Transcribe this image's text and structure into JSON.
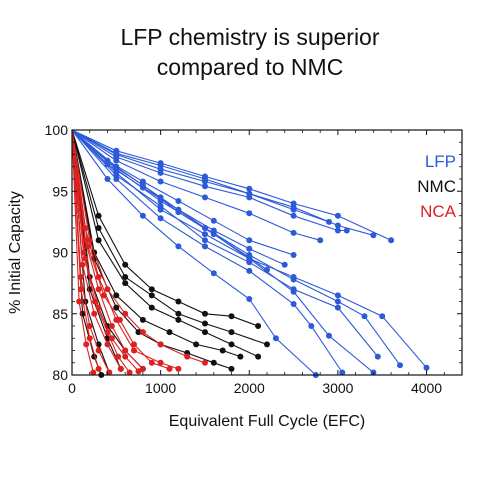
{
  "chart_data": {
    "type": "line",
    "title_lines": [
      "LFP chemistry is superior",
      "compared to NMC"
    ],
    "xlabel": "Equivalent Full Cycle (EFC)",
    "ylabel": "% Initial Capacity",
    "xlim": [
      0,
      4400
    ],
    "ylim": [
      80,
      100
    ],
    "x_ticks": [
      0,
      1000,
      2000,
      3000,
      4000
    ],
    "y_ticks": [
      80,
      85,
      90,
      95,
      100
    ],
    "grid": false,
    "legend_position": "top-right",
    "colors": {
      "LFP": "#2d5ad8",
      "NMC": "#111111",
      "NCA": "#dd2020"
    },
    "series": [
      {
        "name": "LFP",
        "color": "#2d5ad8",
        "curves": [
          [
            [
              0,
              100
            ],
            [
              500,
              98.3
            ],
            [
              1000,
              97.3
            ],
            [
              1500,
              96.2
            ],
            [
              2000,
              95.2
            ],
            [
              2500,
              94.0
            ],
            [
              3000,
              93.0
            ],
            [
              3600,
              91.0
            ]
          ],
          [
            [
              0,
              100
            ],
            [
              500,
              98.0
            ],
            [
              1000,
              96.8
            ],
            [
              1500,
              95.8
            ],
            [
              2000,
              94.8
            ],
            [
              2500,
              93.7
            ],
            [
              3000,
              92.2
            ],
            [
              3400,
              91.4
            ]
          ],
          [
            [
              0,
              100
            ],
            [
              500,
              97.8
            ],
            [
              1000,
              96.5
            ],
            [
              1500,
              95.4
            ],
            [
              2000,
              94.5
            ],
            [
              2500,
              93.0
            ],
            [
              3000,
              91.8
            ],
            [
              3100,
              91.8
            ]
          ],
          [
            [
              0,
              100
            ],
            [
              500,
              98.1
            ],
            [
              1000,
              97.1
            ],
            [
              1500,
              96.0
            ],
            [
              2000,
              94.8
            ],
            [
              2500,
              93.5
            ],
            [
              2900,
              92.5
            ]
          ],
          [
            [
              0,
              100
            ],
            [
              500,
              97.5
            ],
            [
              1000,
              95.8
            ],
            [
              1500,
              94.5
            ],
            [
              2000,
              93.2
            ],
            [
              2500,
              91.6
            ],
            [
              2800,
              91.0
            ]
          ],
          [
            [
              0,
              100
            ],
            [
              400,
              97.5
            ],
            [
              800,
              95.8
            ],
            [
              1200,
              94.2
            ],
            [
              1600,
              92.6
            ],
            [
              2000,
              91.0
            ],
            [
              2500,
              89.8
            ]
          ],
          [
            [
              0,
              100
            ],
            [
              400,
              97.2
            ],
            [
              800,
              95.3
            ],
            [
              1200,
              93.5
            ],
            [
              1600,
              91.8
            ],
            [
              2000,
              90.3
            ],
            [
              2400,
              89.0
            ]
          ],
          [
            [
              0,
              100
            ],
            [
              400,
              97.4
            ],
            [
              800,
              95.5
            ],
            [
              1200,
              93.3
            ],
            [
              1600,
              91.5
            ],
            [
              2000,
              89.6
            ],
            [
              2200,
              88.6
            ]
          ],
          [
            [
              0,
              100
            ],
            [
              500,
              96.5
            ],
            [
              1000,
              93.5
            ],
            [
              1500,
              91.5
            ],
            [
              2000,
              89.5
            ],
            [
              2500,
              88.0
            ],
            [
              3000,
              86.5
            ],
            [
              3500,
              84.8
            ],
            [
              4000,
              80.6
            ]
          ],
          [
            [
              0,
              100
            ],
            [
              500,
              96.3
            ],
            [
              1000,
              93.8
            ],
            [
              1500,
              91.0
            ],
            [
              2000,
              89.2
            ],
            [
              2500,
              87.0
            ],
            [
              3000,
              85.5
            ],
            [
              3450,
              81.5
            ]
          ],
          [
            [
              0,
              100
            ],
            [
              500,
              96.8
            ],
            [
              1000,
              94.2
            ],
            [
              1500,
              92.0
            ],
            [
              2000,
              89.8
            ],
            [
              2500,
              87.8
            ],
            [
              3000,
              86.0
            ],
            [
              3300,
              84.8
            ],
            [
              3700,
              80.8
            ]
          ],
          [
            [
              0,
              100
            ],
            [
              500,
              96.0
            ],
            [
              1000,
              92.8
            ],
            [
              1500,
              90.5
            ],
            [
              2000,
              88.5
            ],
            [
              2500,
              85.8
            ],
            [
              2700,
              84.0
            ],
            [
              3050,
              80.2
            ]
          ],
          [
            [
              0,
              100
            ],
            [
              400,
              96.0
            ],
            [
              800,
              93.0
            ],
            [
              1200,
              90.5
            ],
            [
              1600,
              88.3
            ],
            [
              2000,
              86.2
            ],
            [
              2300,
              83.0
            ],
            [
              2750,
              80.0
            ]
          ],
          [
            [
              0,
              100
            ],
            [
              500,
              97.0
            ],
            [
              1000,
              94.5
            ],
            [
              1500,
              92.0
            ],
            [
              2000,
              89.5
            ],
            [
              2500,
              86.8
            ],
            [
              2900,
              83.2
            ],
            [
              3400,
              80.2
            ]
          ]
        ]
      },
      {
        "name": "NMC",
        "color": "#111111",
        "curves": [
          [
            [
              0,
              100
            ],
            [
              300,
              93.0
            ],
            [
              600,
              89.0
            ],
            [
              900,
              87.0
            ],
            [
              1200,
              86.0
            ],
            [
              1500,
              85.0
            ],
            [
              1800,
              84.8
            ],
            [
              2100,
              84.0
            ]
          ],
          [
            [
              0,
              100
            ],
            [
              300,
              92.0
            ],
            [
              600,
              88.0
            ],
            [
              900,
              86.5
            ],
            [
              1200,
              85.0
            ],
            [
              1500,
              84.2
            ],
            [
              1800,
              83.5
            ],
            [
              2200,
              82.5
            ]
          ],
          [
            [
              0,
              100
            ],
            [
              300,
              91.0
            ],
            [
              600,
              87.5
            ],
            [
              900,
              85.5
            ],
            [
              1200,
              84.5
            ],
            [
              1500,
              83.5
            ],
            [
              1800,
              82.5
            ],
            [
              2100,
              81.5
            ]
          ],
          [
            [
              0,
              100
            ],
            [
              250,
              90.0
            ],
            [
              500,
              86.5
            ],
            [
              800,
              84.5
            ],
            [
              1100,
              83.5
            ],
            [
              1400,
              82.5
            ],
            [
              1700,
              82.0
            ],
            [
              1900,
              81.5
            ]
          ],
          [
            [
              0,
              100
            ],
            [
              250,
              89.5
            ],
            [
              500,
              85.5
            ],
            [
              750,
              83.5
            ],
            [
              1000,
              82.5
            ],
            [
              1300,
              81.8
            ],
            [
              1600,
              81.0
            ],
            [
              1800,
              80.5
            ]
          ],
          [
            [
              0,
              100
            ],
            [
              200,
              88.0
            ],
            [
              400,
              84.0
            ],
            [
              600,
              82.0
            ],
            [
              800,
              80.5
            ]
          ],
          [
            [
              0,
              100
            ],
            [
              200,
              87.0
            ],
            [
              400,
              83.0
            ],
            [
              550,
              80.5
            ]
          ],
          [
            [
              0,
              100
            ],
            [
              150,
              86.0
            ],
            [
              300,
              82.5
            ],
            [
              420,
              80.2
            ]
          ],
          [
            [
              0,
              100
            ],
            [
              120,
              85.0
            ],
            [
              250,
              81.5
            ],
            [
              330,
              80.0
            ]
          ]
        ]
      },
      {
        "name": "NCA",
        "color": "#dd2020",
        "curves": [
          [
            [
              0,
              100
            ],
            [
              150,
              92.0
            ],
            [
              300,
              88.0
            ],
            [
              500,
              84.5
            ],
            [
              700,
              82.0
            ],
            [
              1000,
              81.0
            ],
            [
              1200,
              80.5
            ]
          ],
          [
            [
              0,
              100
            ],
            [
              150,
              91.0
            ],
            [
              300,
              87.0
            ],
            [
              450,
              84.0
            ],
            [
              600,
              82.0
            ],
            [
              800,
              80.5
            ]
          ],
          [
            [
              0,
              100
            ],
            [
              120,
              89.0
            ],
            [
              250,
              85.0
            ],
            [
              400,
              82.5
            ],
            [
              550,
              80.5
            ]
          ],
          [
            [
              0,
              100
            ],
            [
              100,
              88.0
            ],
            [
              200,
              84.0
            ],
            [
              300,
              82.0
            ],
            [
              420,
              80.2
            ]
          ],
          [
            [
              0,
              100
            ],
            [
              100,
              87.0
            ],
            [
              200,
              83.0
            ],
            [
              300,
              80.5
            ]
          ],
          [
            [
              0,
              100
            ],
            [
              80,
              86.0
            ],
            [
              160,
              82.5
            ],
            [
              240,
              80.2
            ]
          ],
          [
            [
              0,
              100
            ],
            [
              150,
              89.5
            ],
            [
              300,
              85.5
            ],
            [
              450,
              83.0
            ],
            [
              600,
              81.5
            ],
            [
              750,
              80.3
            ]
          ],
          [
            [
              0,
              100
            ],
            [
              130,
              90.0
            ],
            [
              260,
              86.0
            ],
            [
              400,
              83.5
            ],
            [
              520,
              81.5
            ],
            [
              650,
              80.2
            ]
          ],
          [
            [
              0,
              100
            ],
            [
              200,
              91.0
            ],
            [
              400,
              87.0
            ],
            [
              600,
              85.0
            ],
            [
              800,
              83.5
            ],
            [
              1000,
              82.5
            ],
            [
              1300,
              81.5
            ],
            [
              1500,
              81.0
            ]
          ],
          [
            [
              0,
              100
            ],
            [
              180,
              90.5
            ],
            [
              360,
              86.5
            ],
            [
              540,
              84.5
            ],
            [
              700,
              82.5
            ],
            [
              900,
              81.0
            ],
            [
              1100,
              80.5
            ]
          ]
        ]
      }
    ]
  }
}
